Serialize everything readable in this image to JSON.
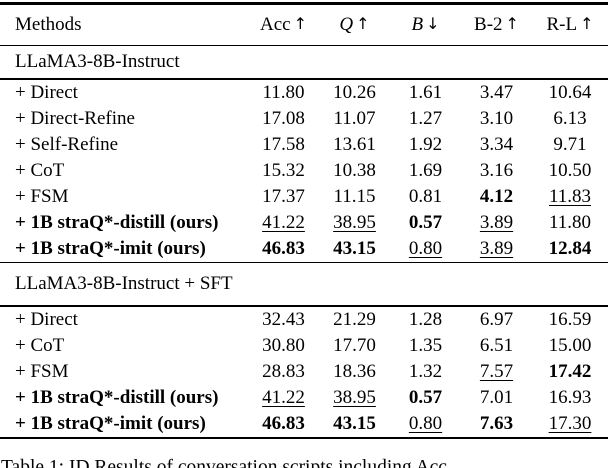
{
  "colors": {
    "text": "#000000",
    "background": "#ffffff"
  },
  "table": {
    "header": {
      "methods": "Methods",
      "cols": [
        {
          "label": "Acc",
          "arrow": "↑"
        },
        {
          "label": "Q",
          "arrow": "↑"
        },
        {
          "label": "B",
          "arrow": "↓"
        },
        {
          "label": "B-2",
          "arrow": "↑"
        },
        {
          "label": "R-L",
          "arrow": "↑"
        }
      ]
    },
    "sections": [
      {
        "title": "LLaMA3-8B-Instruct",
        "rows": [
          {
            "method": "+ Direct",
            "bold": false,
            "values": [
              {
                "v": "11.80",
                "s": "n"
              },
              {
                "v": "10.26",
                "s": "n"
              },
              {
                "v": "1.61",
                "s": "n"
              },
              {
                "v": "3.47",
                "s": "n"
              },
              {
                "v": "10.64",
                "s": "n"
              }
            ]
          },
          {
            "method": "+ Direct-Refine",
            "bold": false,
            "values": [
              {
                "v": "17.08",
                "s": "n"
              },
              {
                "v": "11.07",
                "s": "n"
              },
              {
                "v": "1.27",
                "s": "n"
              },
              {
                "v": "3.10",
                "s": "n"
              },
              {
                "v": "6.13",
                "s": "n"
              }
            ]
          },
          {
            "method": "+ Self-Refine",
            "bold": false,
            "values": [
              {
                "v": "17.58",
                "s": "n"
              },
              {
                "v": "13.61",
                "s": "n"
              },
              {
                "v": "1.92",
                "s": "n"
              },
              {
                "v": "3.34",
                "s": "n"
              },
              {
                "v": "9.71",
                "s": "n"
              }
            ]
          },
          {
            "method": "+ CoT",
            "bold": false,
            "values": [
              {
                "v": "15.32",
                "s": "n"
              },
              {
                "v": "10.38",
                "s": "n"
              },
              {
                "v": "1.69",
                "s": "n"
              },
              {
                "v": "3.16",
                "s": "n"
              },
              {
                "v": "10.50",
                "s": "n"
              }
            ]
          },
          {
            "method": "+ FSM",
            "bold": false,
            "values": [
              {
                "v": "17.37",
                "s": "n"
              },
              {
                "v": "11.15",
                "s": "n"
              },
              {
                "v": "0.81",
                "s": "n"
              },
              {
                "v": "4.12",
                "s": "b"
              },
              {
                "v": "11.83",
                "s": "u"
              }
            ]
          },
          {
            "method": "+ 1B straQ*-distill (ours)",
            "bold": true,
            "values": [
              {
                "v": "41.22",
                "s": "u"
              },
              {
                "v": "38.95",
                "s": "u"
              },
              {
                "v": "0.57",
                "s": "b"
              },
              {
                "v": "3.89",
                "s": "u"
              },
              {
                "v": "11.80",
                "s": "n"
              }
            ]
          },
          {
            "method": "+ 1B straQ*-imit (ours)",
            "bold": true,
            "values": [
              {
                "v": "46.83",
                "s": "b"
              },
              {
                "v": "43.15",
                "s": "b"
              },
              {
                "v": "0.80",
                "s": "u"
              },
              {
                "v": "3.89",
                "s": "u"
              },
              {
                "v": "12.84",
                "s": "b"
              }
            ]
          }
        ]
      },
      {
        "title": "LLaMA3-8B-Instruct + SFT",
        "rows": [
          {
            "method": "+ Direct",
            "bold": false,
            "values": [
              {
                "v": "32.43",
                "s": "n"
              },
              {
                "v": "21.29",
                "s": "n"
              },
              {
                "v": "1.28",
                "s": "n"
              },
              {
                "v": "6.97",
                "s": "n"
              },
              {
                "v": "16.59",
                "s": "n"
              }
            ]
          },
          {
            "method": "+ CoT",
            "bold": false,
            "values": [
              {
                "v": "30.80",
                "s": "n"
              },
              {
                "v": "17.70",
                "s": "n"
              },
              {
                "v": "1.35",
                "s": "n"
              },
              {
                "v": "6.51",
                "s": "n"
              },
              {
                "v": "15.00",
                "s": "n"
              }
            ]
          },
          {
            "method": "+ FSM",
            "bold": false,
            "values": [
              {
                "v": "28.83",
                "s": "n"
              },
              {
                "v": "18.36",
                "s": "n"
              },
              {
                "v": "1.32",
                "s": "n"
              },
              {
                "v": "7.57",
                "s": "u"
              },
              {
                "v": "17.42",
                "s": "b"
              }
            ]
          },
          {
            "method": "+ 1B straQ*-distill (ours)",
            "bold": true,
            "values": [
              {
                "v": "41.22",
                "s": "u"
              },
              {
                "v": "38.95",
                "s": "u"
              },
              {
                "v": "0.57",
                "s": "b"
              },
              {
                "v": "7.01",
                "s": "n"
              },
              {
                "v": "16.93",
                "s": "n"
              }
            ]
          },
          {
            "method": "+ 1B straQ*-imit (ours)",
            "bold": true,
            "values": [
              {
                "v": "46.83",
                "s": "b"
              },
              {
                "v": "43.15",
                "s": "b"
              },
              {
                "v": "0.80",
                "s": "u"
              },
              {
                "v": "7.63",
                "s": "b"
              },
              {
                "v": "17.30",
                "s": "u"
              }
            ]
          }
        ]
      }
    ],
    "caption": "Table 1: ID Results of conversation scripts including Acc"
  }
}
